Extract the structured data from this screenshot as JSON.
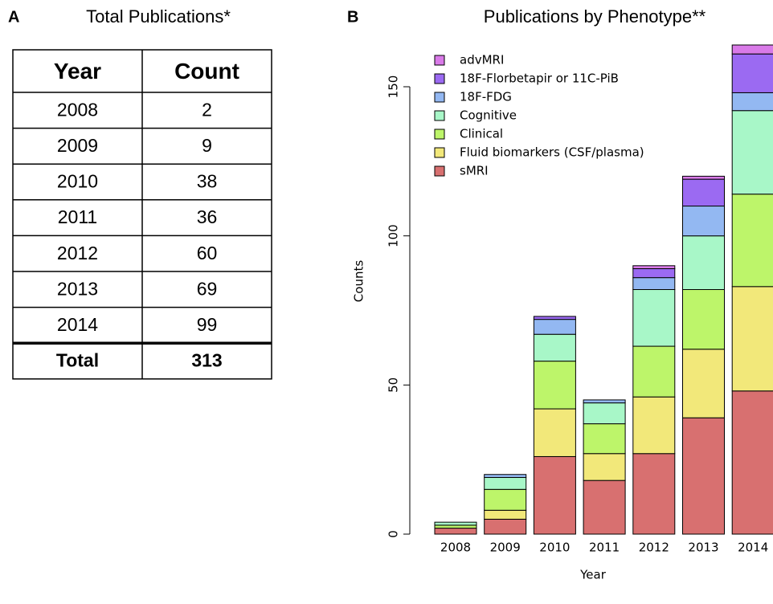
{
  "table": {
    "panel_label": "A",
    "title": "Total Publications*",
    "header": [
      "Year",
      "Count"
    ],
    "rows": [
      [
        "2008",
        "2"
      ],
      [
        "2009",
        "9"
      ],
      [
        "2010",
        "38"
      ],
      [
        "2011",
        "36"
      ],
      [
        "2012",
        "60"
      ],
      [
        "2013",
        "69"
      ],
      [
        "2014",
        "99"
      ]
    ],
    "total": [
      "Total",
      "313"
    ]
  },
  "chart_data": {
    "type": "stacked_bar",
    "panel_label": "B",
    "title": "Publications by Phenotype**",
    "x_label": "Year",
    "y_label": "Counts",
    "categories": [
      "2008",
      "2009",
      "2010",
      "2011",
      "2012",
      "2013",
      "2014"
    ],
    "series": [
      {
        "name": "sMRI",
        "color": "#d87070",
        "values": [
          2,
          5,
          26,
          18,
          27,
          39,
          48
        ]
      },
      {
        "name": "Fluid biomarkers (CSF/plasma)",
        "color": "#f2e87a",
        "values": [
          0,
          3,
          16,
          9,
          19,
          23,
          35
        ]
      },
      {
        "name": "Clinical",
        "color": "#bdf56a",
        "values": [
          1,
          7,
          16,
          10,
          17,
          20,
          31
        ]
      },
      {
        "name": "Cognitive",
        "color": "#a8f7c8",
        "values": [
          1,
          4,
          9,
          7,
          19,
          18,
          28
        ]
      },
      {
        "name": "18F-FDG",
        "color": "#93b8f2",
        "values": [
          0,
          1,
          5,
          1,
          4,
          10,
          6
        ]
      },
      {
        "name": "18F-Florbetapir or 11C-PiB",
        "color": "#9b6af2",
        "values": [
          0,
          0,
          1,
          0,
          3,
          9,
          13
        ]
      },
      {
        "name": "advMRI",
        "color": "#d97ae8",
        "values": [
          0,
          0,
          0,
          0,
          1,
          1,
          3
        ]
      }
    ],
    "ylim": [
      0,
      165
    ],
    "yticks": [
      0,
      50,
      100,
      150
    ],
    "legend": "upper left"
  }
}
